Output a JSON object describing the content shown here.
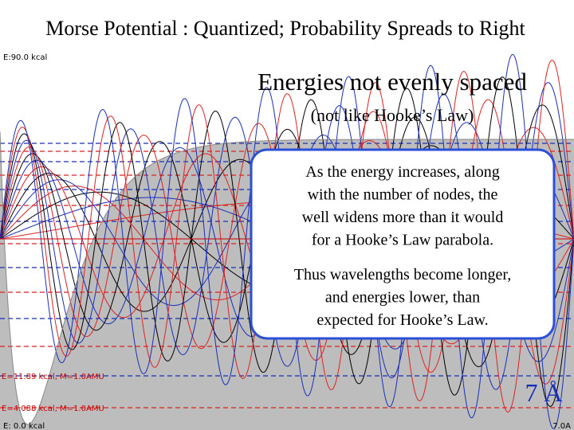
{
  "title": "Morse Potential :  Quantized; Probability Spreads to Right",
  "plot": {
    "labels": [
      "E:90.0 kcal",
      "E=11.89 kcal, M=1.0AMU",
      "E=4.088 kcal, M=1.0AMU",
      "E: 0.0 kcal",
      "7.0A"
    ]
  },
  "headline": "Energies not evenly spaced",
  "subheading": "(not like Hooke’s Law)",
  "box": {
    "paragraphs": [
      [
        "As the energy increases, along",
        "with the number of nodes, the",
        "well widens more than it would",
        "for a Hooke’s Law parabola."
      ],
      [
        "Thus wavelengths become longer,",
        "and energies lower, than",
        "expected for Hooke’s Law."
      ]
    ]
  },
  "scale_label": "7 Å"
}
